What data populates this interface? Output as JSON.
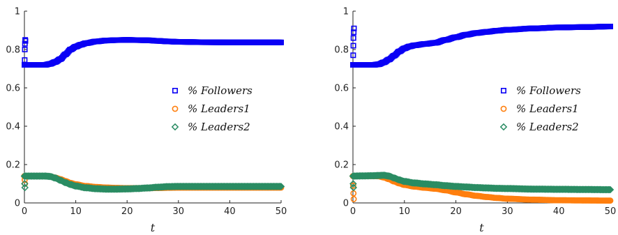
{
  "colors": {
    "Followers": "#0a00f5",
    "Leaders1": "#ff7f0e",
    "Leaders2": "#2a8c63",
    "axis": "#222222"
  },
  "chart_data": [
    {
      "type": "scatter",
      "title": "",
      "xlabel": "t",
      "ylabel": "",
      "xlim": [
        0,
        50
      ],
      "ylim": [
        0,
        1
      ],
      "xticks": [
        0,
        10,
        20,
        30,
        40,
        50
      ],
      "yticks": [
        0,
        0.2,
        0.4,
        0.6,
        0.8,
        1
      ],
      "xtick_labels": [
        "0",
        "10",
        "20",
        "30",
        "40",
        "50"
      ],
      "ytick_labels": [
        "0",
        "0.2",
        "0.4",
        "0.6",
        "0.8",
        "1"
      ],
      "legend_position": "center-right",
      "grid": false,
      "series": [
        {
          "name": "% Followers",
          "marker": "square",
          "initial_points": [
            [
              0,
              0.72
            ],
            [
              0.05,
              0.745
            ],
            [
              0.08,
              0.8
            ],
            [
              0.1,
              0.83
            ],
            [
              0.15,
              0.85
            ],
            [
              0.2,
              0.845
            ]
          ],
          "x": [
            0,
            2,
            4,
            5,
            6,
            7,
            8,
            9,
            10,
            11,
            12,
            14,
            16,
            18,
            20,
            22,
            24,
            26,
            28,
            30,
            35,
            40,
            45,
            50
          ],
          "y": [
            0.72,
            0.72,
            0.72,
            0.725,
            0.735,
            0.75,
            0.775,
            0.8,
            0.815,
            0.825,
            0.833,
            0.842,
            0.847,
            0.849,
            0.85,
            0.849,
            0.848,
            0.845,
            0.842,
            0.84,
            0.838,
            0.837,
            0.837,
            0.837
          ]
        },
        {
          "name": "% Leaders1",
          "marker": "circle",
          "initial_points": [
            [
              0,
              0.14
            ],
            [
              0.05,
              0.12
            ],
            [
              0.1,
              0.1
            ]
          ],
          "x": [
            0,
            2,
            4,
            5,
            6,
            7,
            8,
            9,
            10,
            12,
            14,
            16,
            18,
            20,
            22,
            24,
            26,
            28,
            30,
            35,
            40,
            45,
            50
          ],
          "y": [
            0.14,
            0.14,
            0.14,
            0.138,
            0.132,
            0.124,
            0.114,
            0.104,
            0.097,
            0.088,
            0.083,
            0.08,
            0.078,
            0.077,
            0.077,
            0.077,
            0.078,
            0.079,
            0.08,
            0.08,
            0.08,
            0.08,
            0.08
          ]
        },
        {
          "name": "% Leaders2",
          "marker": "diamond",
          "initial_points": [
            [
              0,
              0.14
            ],
            [
              0.05,
              0.1
            ],
            [
              0.1,
              0.08
            ]
          ],
          "x": [
            0,
            2,
            4,
            5,
            6,
            7,
            8,
            9,
            10,
            12,
            14,
            16,
            18,
            20,
            22,
            24,
            26,
            28,
            30,
            35,
            40,
            45,
            50
          ],
          "y": [
            0.14,
            0.14,
            0.14,
            0.138,
            0.13,
            0.118,
            0.106,
            0.096,
            0.088,
            0.079,
            0.074,
            0.072,
            0.072,
            0.073,
            0.075,
            0.078,
            0.082,
            0.085,
            0.086,
            0.086,
            0.086,
            0.086,
            0.086
          ]
        }
      ]
    },
    {
      "type": "scatter",
      "title": "",
      "xlabel": "t",
      "ylabel": "",
      "xlim": [
        0,
        50
      ],
      "ylim": [
        0,
        1
      ],
      "xticks": [
        0,
        10,
        20,
        30,
        40,
        50
      ],
      "yticks": [
        0,
        0.2,
        0.4,
        0.6,
        0.8,
        1
      ],
      "xtick_labels": [
        "0",
        "10",
        "20",
        "30",
        "40",
        "50"
      ],
      "ytick_labels": [
        "0",
        "0.2",
        "0.4",
        "0.6",
        "0.8",
        "1"
      ],
      "legend_position": "center-right",
      "grid": false,
      "series": [
        {
          "name": "% Followers",
          "marker": "square",
          "initial_points": [
            [
              0,
              0.72
            ],
            [
              0.05,
              0.77
            ],
            [
              0.08,
              0.82
            ],
            [
              0.1,
              0.86
            ],
            [
              0.15,
              0.89
            ],
            [
              0.2,
              0.91
            ]
          ],
          "x": [
            0,
            2,
            4,
            5,
            6,
            7,
            8,
            9,
            10,
            11,
            12,
            14,
            16,
            18,
            20,
            22,
            24,
            26,
            28,
            30,
            35,
            40,
            45,
            50
          ],
          "y": [
            0.72,
            0.72,
            0.72,
            0.723,
            0.733,
            0.748,
            0.768,
            0.79,
            0.806,
            0.816,
            0.822,
            0.829,
            0.835,
            0.85,
            0.864,
            0.877,
            0.886,
            0.892,
            0.898,
            0.903,
            0.91,
            0.915,
            0.917,
            0.92
          ]
        },
        {
          "name": "% Leaders1",
          "marker": "circle",
          "initial_points": [
            [
              0,
              0.14
            ],
            [
              0.05,
              0.09
            ],
            [
              0.1,
              0.05
            ],
            [
              0.15,
              0.02
            ]
          ],
          "x": [
            0,
            2,
            4,
            5,
            6,
            7,
            8,
            9,
            10,
            12,
            14,
            16,
            18,
            20,
            22,
            24,
            26,
            28,
            30,
            35,
            40,
            45,
            50
          ],
          "y": [
            0.14,
            0.14,
            0.14,
            0.139,
            0.133,
            0.124,
            0.112,
            0.102,
            0.094,
            0.085,
            0.079,
            0.074,
            0.066,
            0.055,
            0.045,
            0.037,
            0.031,
            0.026,
            0.022,
            0.017,
            0.014,
            0.013,
            0.012
          ]
        },
        {
          "name": "% Leaders2",
          "marker": "diamond",
          "initial_points": [
            [
              0,
              0.14
            ],
            [
              0.05,
              0.1
            ],
            [
              0.1,
              0.08
            ]
          ],
          "x": [
            0,
            2,
            4,
            5,
            6,
            7,
            8,
            9,
            10,
            12,
            14,
            16,
            18,
            20,
            22,
            24,
            26,
            28,
            30,
            35,
            40,
            45,
            50
          ],
          "y": [
            0.14,
            0.141,
            0.142,
            0.143,
            0.144,
            0.14,
            0.13,
            0.12,
            0.112,
            0.104,
            0.099,
            0.095,
            0.09,
            0.086,
            0.083,
            0.08,
            0.078,
            0.076,
            0.075,
            0.072,
            0.071,
            0.07,
            0.069
          ]
        }
      ]
    }
  ]
}
